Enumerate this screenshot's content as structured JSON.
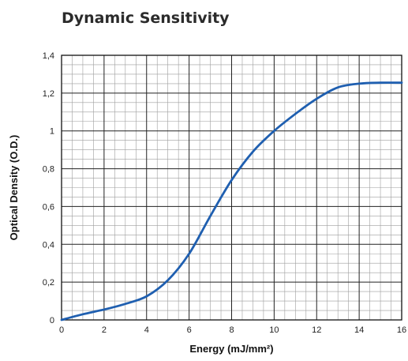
{
  "chart_data": {
    "type": "line",
    "title": "Dynamic Sensitivity",
    "xlabel": "Energy (mJ/mm²)",
    "ylabel": "Optical Density (O.D.)",
    "xlim": [
      0,
      16
    ],
    "ylim": [
      0,
      1.4
    ],
    "x_ticks": [
      "0",
      "2",
      "4",
      "6",
      "8",
      "10",
      "12",
      "14",
      "16"
    ],
    "y_ticks": [
      "0",
      "0,2",
      "0,4",
      "0,6",
      "0,8",
      "1",
      "1,2",
      "1,4"
    ],
    "grid": true,
    "series": [
      {
        "x": [
          0,
          1,
          2,
          3,
          4,
          5,
          6,
          7,
          8,
          9,
          10,
          11,
          12,
          13,
          14,
          15,
          16
        ],
        "y": [
          0,
          0.03,
          0.055,
          0.085,
          0.125,
          0.21,
          0.35,
          0.55,
          0.74,
          0.89,
          1.0,
          1.09,
          1.17,
          1.23,
          1.25,
          1.255,
          1.255
        ]
      }
    ],
    "colors": {
      "line": "#1f5fb0",
      "grid_major": "#222222",
      "grid_minor": "#9e9e9e",
      "frame": "#111111"
    }
  }
}
